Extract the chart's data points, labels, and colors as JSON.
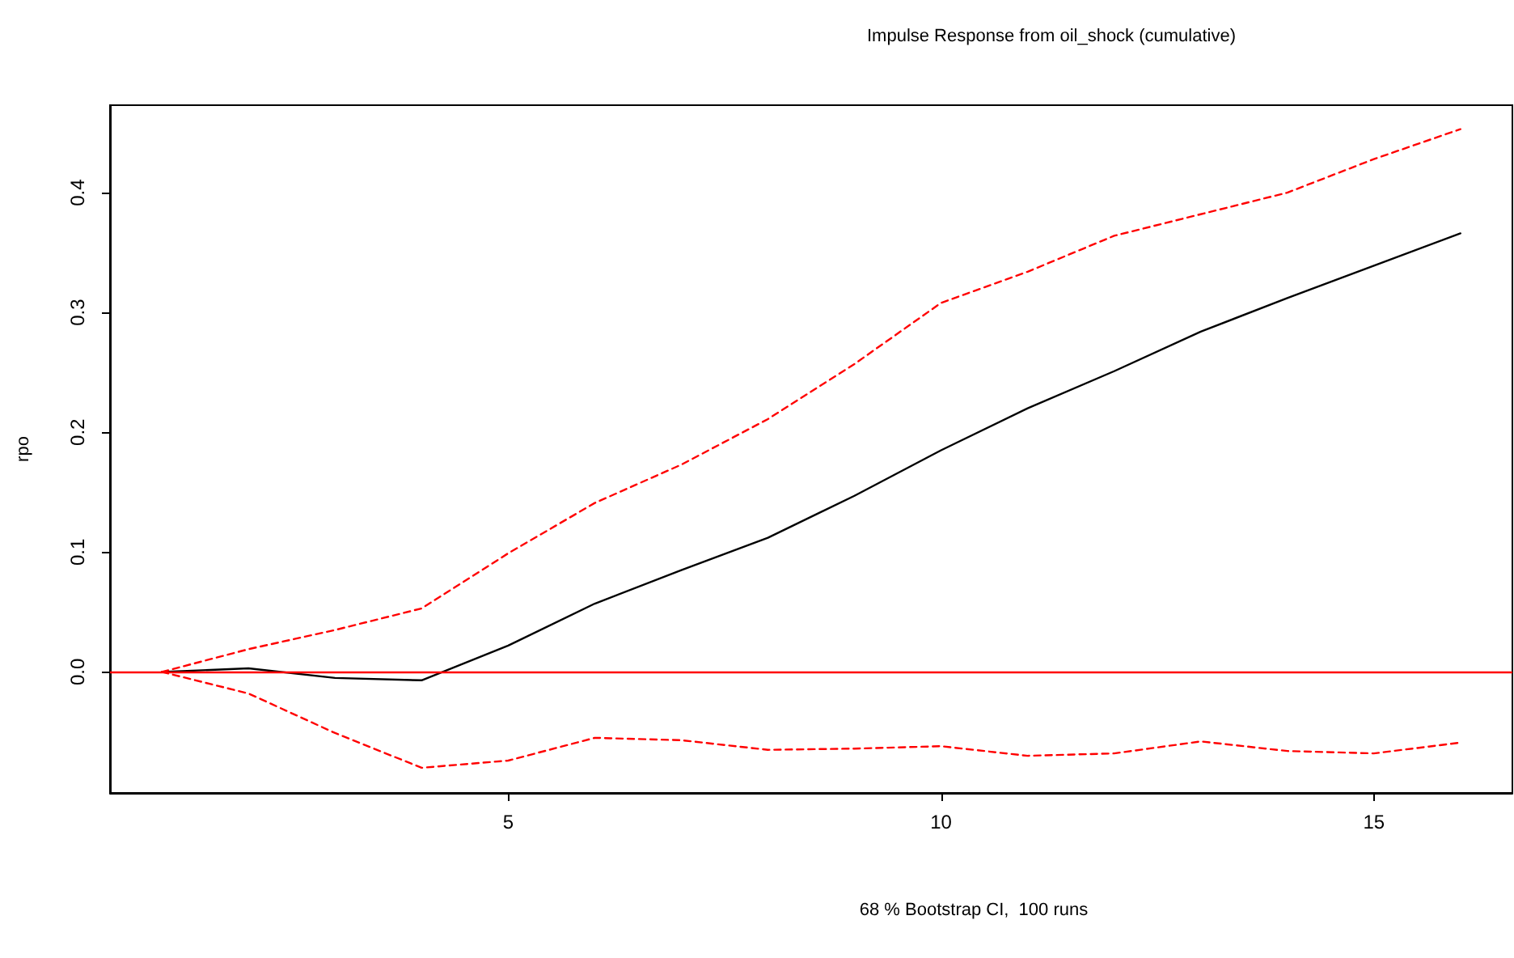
{
  "chart_data": {
    "type": "line",
    "title": "Impulse Response from oil_shock (cumulative)",
    "xlabel": "68 % Bootstrap CI,  100 runs",
    "ylabel": "rpo",
    "x": [
      1,
      2,
      3,
      4,
      5,
      6,
      7,
      8,
      9,
      10,
      11,
      12,
      13,
      14,
      15,
      16
    ],
    "series": [
      {
        "color": "#000000",
        "line_style": "solid",
        "values": [
          0,
          0.003,
          -0.005,
          -0.007,
          0.022,
          0.057,
          0.085,
          0.112,
          0.147,
          0.185,
          0.22,
          0.251,
          0.284,
          0.312,
          0.339,
          0.366
        ]
      },
      {
        "color": "#ff0000",
        "line_style": "dashed",
        "values": [
          0,
          0.019,
          0.035,
          0.053,
          0.099,
          0.141,
          0.173,
          0.211,
          0.257,
          0.308,
          0.334,
          0.364,
          0.382,
          0.4,
          0.428,
          0.453
        ]
      },
      {
        "color": "#ff0000",
        "line_style": "dashed",
        "values": [
          0,
          -0.018,
          -0.051,
          -0.08,
          -0.074,
          -0.055,
          -0.057,
          -0.065,
          -0.064,
          -0.062,
          -0.07,
          -0.068,
          -0.058,
          -0.066,
          -0.068,
          -0.059
        ]
      }
    ],
    "xlim": [
      0.4,
      16.6
    ],
    "xticks": [
      5,
      10,
      15
    ],
    "ylim": [
      -0.101,
      0.473
    ],
    "yticks": [
      {
        "value": 0,
        "label": "0.0"
      },
      0.1,
      0.2,
      0.3,
      0.4
    ],
    "ref_lines": [
      {
        "axis": "y",
        "value": 0,
        "color": "#ff0000",
        "line_style": "solid"
      }
    ],
    "grid": false,
    "marker": "none"
  }
}
